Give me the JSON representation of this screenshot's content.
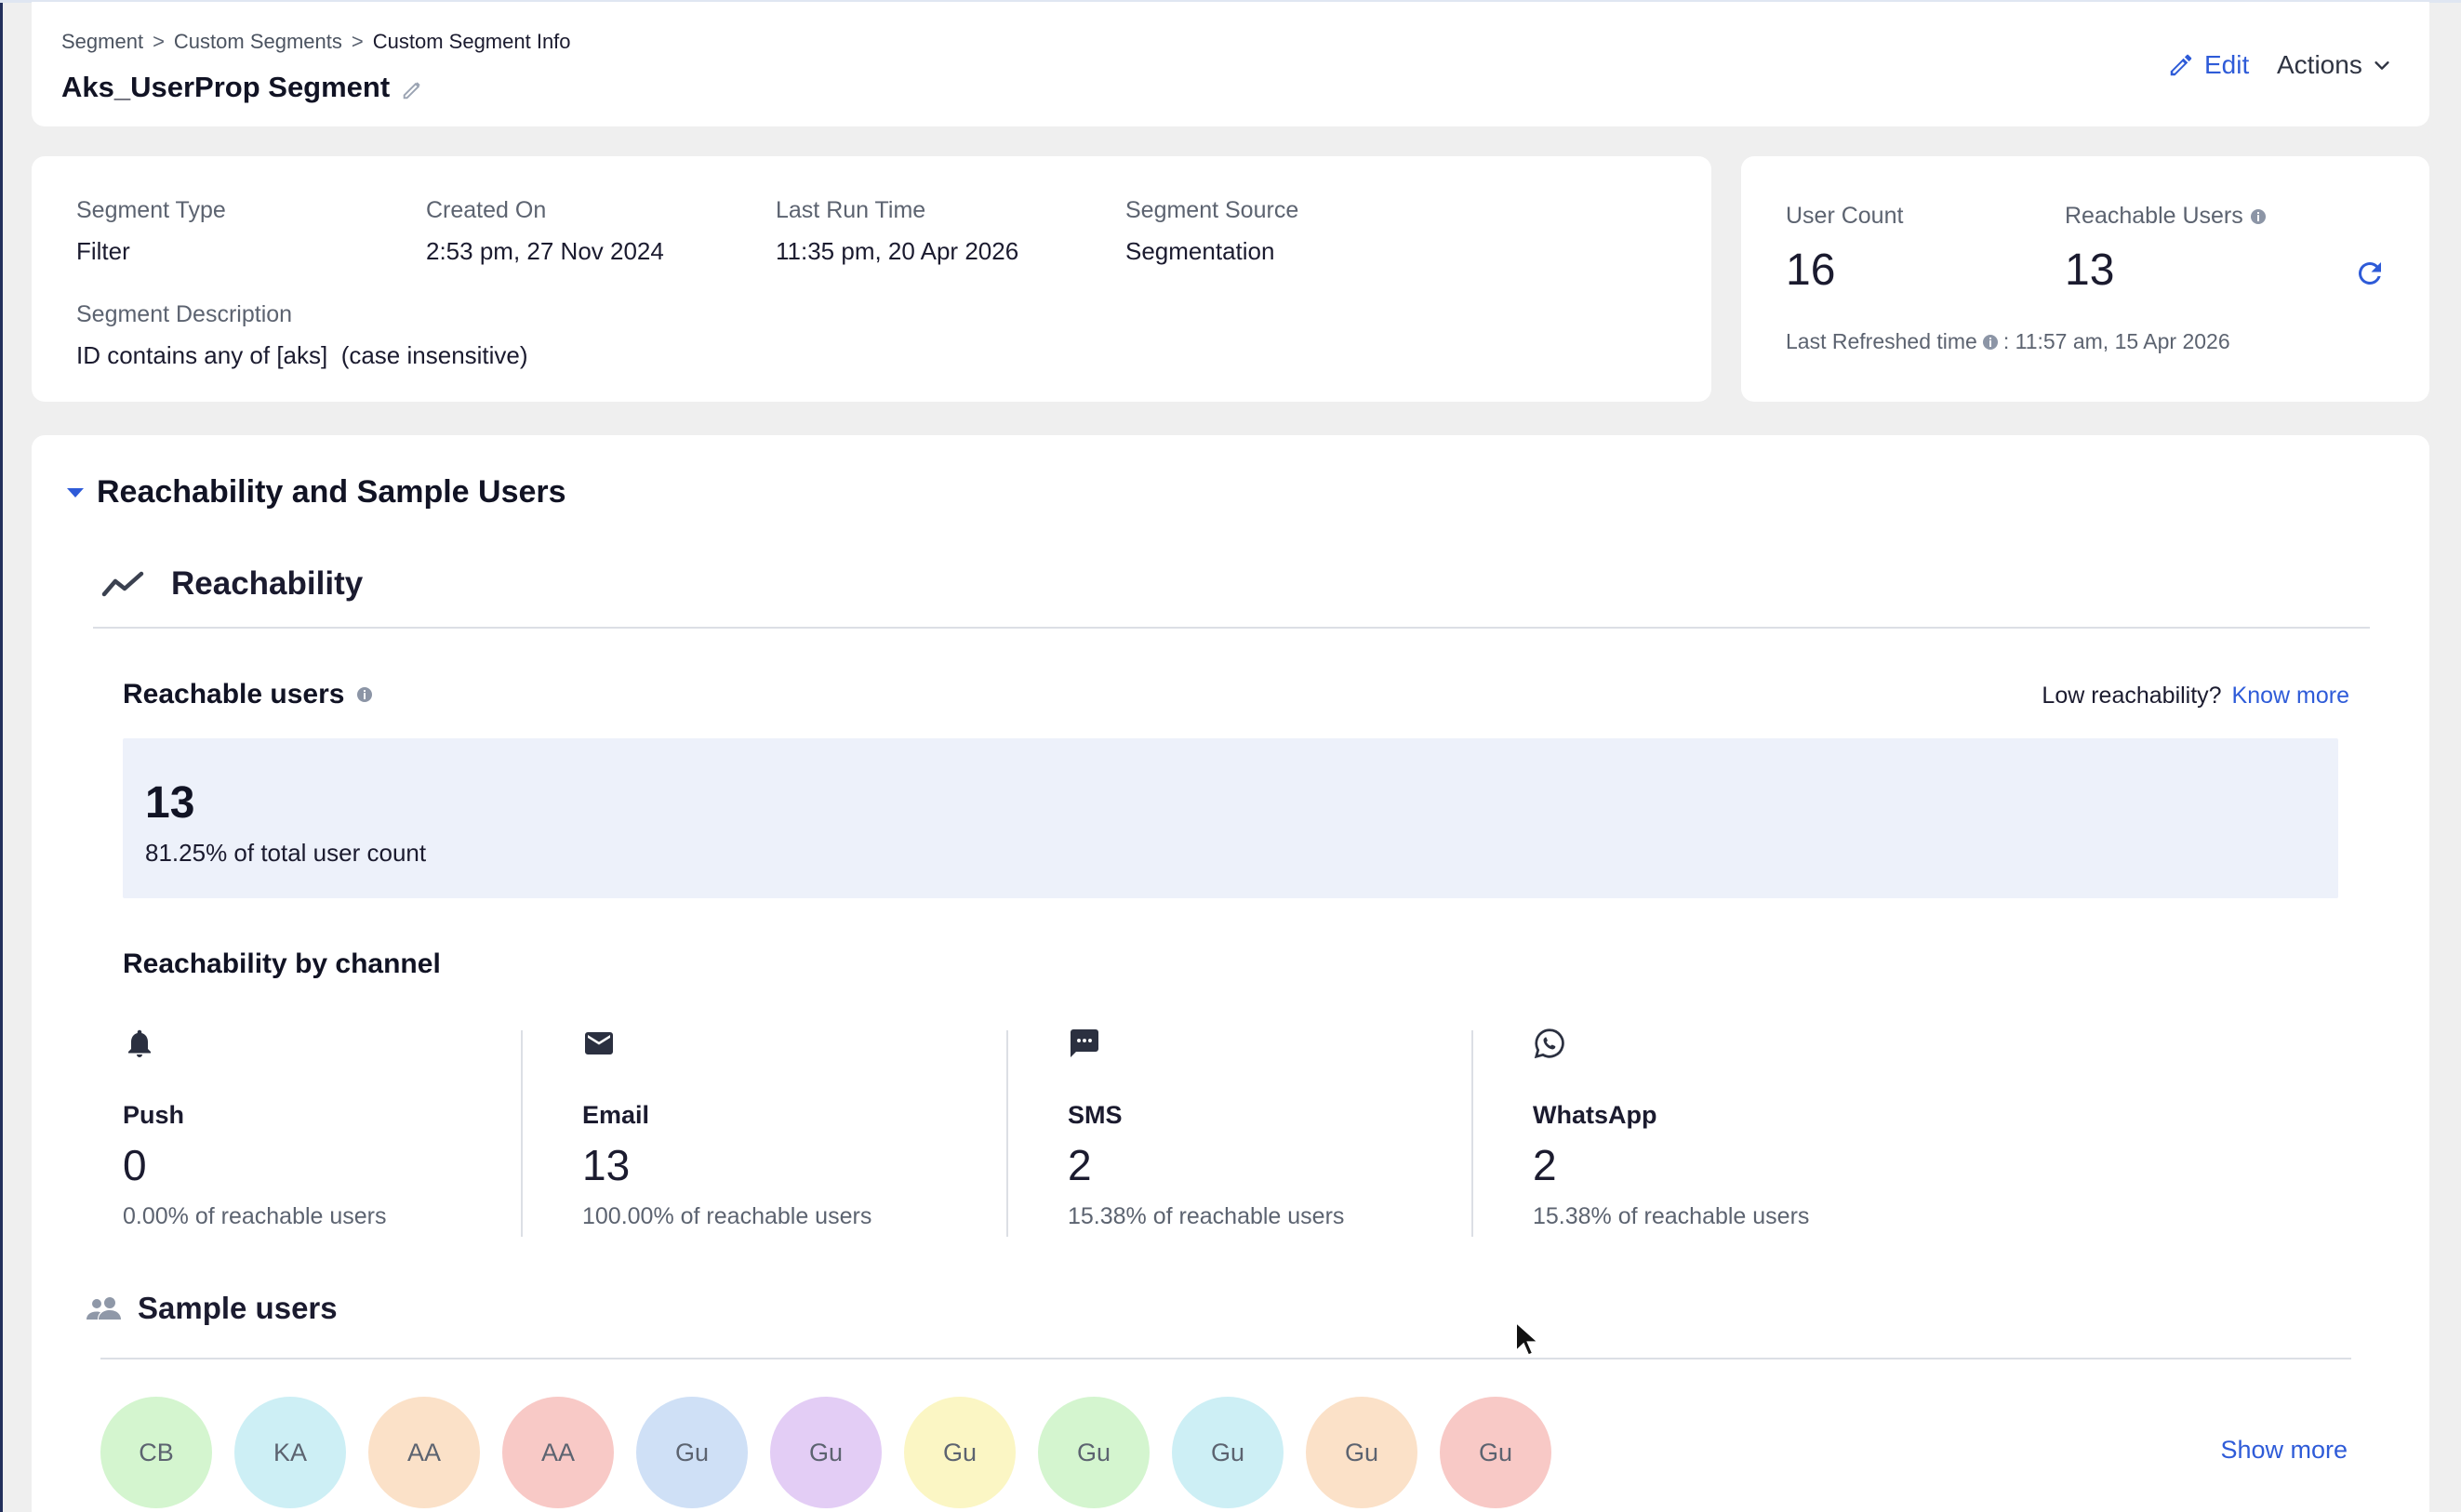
{
  "breadcrumb": {
    "items": [
      "Segment",
      "Custom Segments",
      "Custom Segment Info"
    ],
    "separator": ">"
  },
  "page": {
    "title": "Aks_UserProp Segment"
  },
  "toolbar": {
    "edit_label": "Edit",
    "actions_label": "Actions"
  },
  "info": {
    "segment_type": {
      "label": "Segment Type",
      "value": "Filter"
    },
    "created_on": {
      "label": "Created On",
      "value": "2:53 pm, 27 Nov 2024"
    },
    "last_run_time": {
      "label": "Last Run Time",
      "value": "11:35 pm, 20 Apr 2026"
    },
    "segment_source": {
      "label": "Segment Source",
      "value": "Segmentation"
    },
    "segment_description": {
      "label": "Segment Description",
      "value": "ID contains any of [aks]  (case insensitive)"
    }
  },
  "counts": {
    "user_count": {
      "label": "User Count",
      "value": "16"
    },
    "reachable_users": {
      "label": "Reachable Users",
      "value": "13"
    },
    "last_refreshed_label": "Last Refreshed time",
    "last_refreshed_value": ": 11:57 am, 15 Apr 2026"
  },
  "section": {
    "title": "Reachability and Sample Users",
    "reachability_label": "Reachability",
    "reachable_users_label": "Reachable users",
    "low_reach_text": "Low reachability?",
    "know_more_label": "Know more",
    "reachable_count": "13",
    "reachable_pct_text": "81.25% of total user count",
    "by_channel_label": "Reachability by channel"
  },
  "channels": [
    {
      "name": "Push",
      "count": "0",
      "pct": "0.00% of reachable users",
      "icon": "bell-icon"
    },
    {
      "name": "Email",
      "count": "13",
      "pct": "100.00% of reachable users",
      "icon": "envelope-icon"
    },
    {
      "name": "SMS",
      "count": "2",
      "pct": "15.38% of reachable users",
      "icon": "chat-bubble-icon"
    },
    {
      "name": "WhatsApp",
      "count": "2",
      "pct": "15.38% of reachable users",
      "icon": "whatsapp-icon"
    }
  ],
  "sample_users": {
    "label": "Sample users",
    "show_more_label": "Show more",
    "avatars": [
      {
        "initials": "CB",
        "color": "#d4f5cf"
      },
      {
        "initials": "KA",
        "color": "#cdeff5"
      },
      {
        "initials": "AA",
        "color": "#fbe1c8"
      },
      {
        "initials": "AA",
        "color": "#f8c9c6"
      },
      {
        "initials": "Gu",
        "color": "#cfe0f6"
      },
      {
        "initials": "Gu",
        "color": "#e3cdf5"
      },
      {
        "initials": "Gu",
        "color": "#fbf6c4"
      },
      {
        "initials": "Gu",
        "color": "#d4f5cf"
      },
      {
        "initials": "Gu",
        "color": "#cdeff5"
      },
      {
        "initials": "Gu",
        "color": "#fbe1c8"
      },
      {
        "initials": "Gu",
        "color": "#f8c9c6"
      }
    ]
  },
  "colors": {
    "accent": "#2e5bd8",
    "stat_box_bg": "#edf1fa",
    "page_bg": "#efefef"
  }
}
